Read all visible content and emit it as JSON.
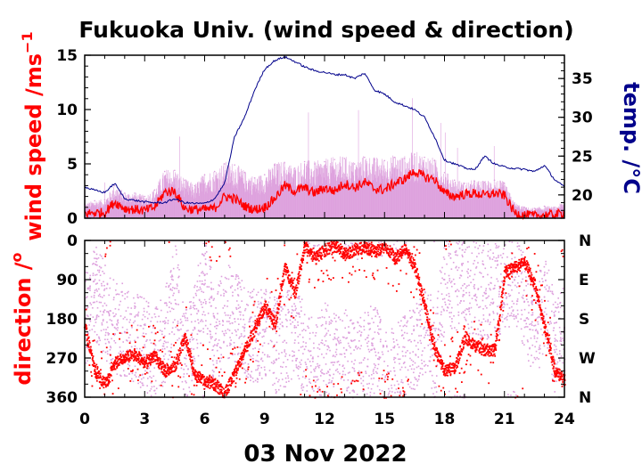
{
  "chart_data": [
    {
      "type": "line",
      "title": "Fukuoka Univ. (wind speed & direction)",
      "ylabel": "wind speed /ms",
      "ylabel_sup": "−1",
      "y2label": "temp. /",
      "y2label_unit": "°C",
      "xlim": [
        0,
        24
      ],
      "ylim": [
        0,
        15
      ],
      "y2lim": [
        17,
        38
      ],
      "x_ticks": [
        "0",
        "3",
        "6",
        "9",
        "12",
        "15",
        "18",
        "21",
        "24"
      ],
      "y_ticks": [
        "0",
        "5",
        "10",
        "15"
      ],
      "y2_ticks": [
        "20",
        "25",
        "30",
        "35"
      ],
      "colors": {
        "mean": "#ff0000",
        "gust": "#dda0dd",
        "temperature": "#00008b"
      },
      "series": [
        {
          "role": "mean",
          "x": [
            0,
            0.5,
            1,
            1.5,
            2,
            2.5,
            3,
            3.5,
            4,
            4.5,
            5,
            5.5,
            6,
            6.5,
            7,
            7.5,
            8,
            8.5,
            9,
            9.5,
            10,
            10.5,
            11,
            11.5,
            12,
            12.5,
            13,
            13.5,
            14,
            14.5,
            15,
            15.5,
            16,
            16.5,
            17,
            17.5,
            18,
            18.5,
            19,
            19.5,
            20,
            20.5,
            21,
            21.5,
            22,
            22.5,
            23,
            23.5,
            24
          ],
          "y": [
            0.4,
            0.5,
            0.5,
            1.5,
            0.9,
            0.8,
            0.7,
            1.0,
            2.4,
            2.5,
            0.9,
            0.8,
            0.8,
            0.9,
            2.0,
            1.8,
            1.1,
            0.8,
            1.0,
            1.8,
            3.0,
            2.5,
            2.8,
            2.3,
            2.8,
            2.5,
            3.2,
            2.8,
            3.3,
            2.7,
            2.6,
            3.2,
            3.6,
            4.3,
            3.8,
            3.6,
            2.3,
            2.0,
            2.2,
            2.3,
            2.1,
            2.3,
            2.1,
            0.5,
            0.3,
            0.2,
            0.3,
            0.3,
            0.5
          ]
        },
        {
          "role": "gust",
          "x": [
            0,
            0.5,
            1,
            1.5,
            2,
            2.5,
            3,
            3.5,
            4,
            4.5,
            5,
            5.5,
            6,
            6.5,
            7,
            7.5,
            8,
            8.5,
            9,
            9.5,
            10,
            10.5,
            11,
            11.5,
            12,
            12.5,
            13,
            13.5,
            14,
            14.5,
            15,
            15.5,
            16,
            16.5,
            17,
            17.5,
            18,
            18.5,
            19,
            19.5,
            20,
            20.5,
            21,
            21.5,
            22,
            22.5,
            23,
            23.5,
            24
          ],
          "y": [
            1.3,
            1.6,
            1.7,
            3.0,
            2.3,
            2.3,
            2.0,
            2.6,
            4.3,
            4.4,
            3.5,
            3.0,
            4.0,
            4.3,
            5.0,
            4.9,
            4.2,
            3.7,
            4.0,
            4.9,
            5.1,
            4.6,
            5.2,
            5.0,
            5.2,
            5.4,
            5.5,
            5.0,
            5.6,
            5.4,
            5.3,
            5.6,
            5.5,
            5.9,
            5.6,
            5.3,
            4.2,
            3.5,
            3.2,
            3.4,
            3.3,
            3.5,
            3.2,
            1.4,
            1.0,
            0.9,
            1.1,
            1.0,
            1.5
          ]
        },
        {
          "role": "temperature",
          "x": [
            0,
            0.5,
            1,
            1.5,
            2,
            2.5,
            3,
            3.5,
            4,
            4.5,
            5,
            5.5,
            6,
            6.5,
            7,
            7.5,
            8,
            8.5,
            9,
            9.5,
            10,
            10.5,
            11,
            11.5,
            12,
            12.5,
            13,
            13.5,
            14,
            14.5,
            15,
            15.5,
            16,
            16.5,
            17,
            17.5,
            18,
            18.5,
            19,
            19.5,
            20,
            20.5,
            21,
            21.5,
            22,
            22.5,
            23,
            23.5,
            24
          ],
          "y": [
            21.0,
            20.6,
            20.3,
            21.5,
            19.5,
            19.3,
            19.1,
            19.0,
            19.0,
            19.5,
            19.0,
            18.9,
            18.9,
            19.5,
            21.5,
            27.5,
            30.0,
            33.5,
            36.2,
            37.3,
            37.8,
            37.2,
            36.5,
            36.0,
            35.8,
            35.5,
            35.5,
            35.0,
            35.7,
            33.5,
            33.0,
            32.0,
            31.5,
            31.0,
            30.0,
            27.5,
            24.5,
            24.0,
            23.5,
            23.2,
            25.0,
            24.0,
            23.6,
            23.4,
            23.3,
            23.0,
            23.8,
            22.0,
            21.0
          ]
        }
      ]
    },
    {
      "type": "scatter",
      "ylabel": "direction /",
      "ylabel_unit": "o",
      "xlim": [
        0,
        24
      ],
      "ylim": [
        0,
        360
      ],
      "y_reversed": true,
      "xlabel": "03 Nov 2022",
      "x_ticks": [
        "0",
        "3",
        "6",
        "9",
        "12",
        "15",
        "18",
        "21",
        "24"
      ],
      "y_ticks": [
        "0",
        "90",
        "180",
        "270",
        "360"
      ],
      "y2_ticks": [
        "N",
        "E",
        "S",
        "W",
        "N"
      ],
      "colors": {
        "mean": "#ff0000",
        "gust": "#dda0dd"
      },
      "series": [
        {
          "role": "mean",
          "x": [
            0,
            0.5,
            1,
            1.5,
            2,
            2.5,
            3,
            3.5,
            4,
            4.5,
            5,
            5.5,
            6,
            6.5,
            7,
            7.5,
            8,
            8.5,
            9,
            9.5,
            10,
            10.5,
            11,
            11.5,
            12,
            12.5,
            13,
            13.5,
            14,
            14.5,
            15,
            15.5,
            16,
            16.5,
            17,
            17.5,
            18,
            18.5,
            19,
            19.5,
            20,
            20.5,
            21,
            21.5,
            22,
            22.5,
            23,
            23.5,
            24
          ],
          "y": [
            200,
            300,
            330,
            280,
            265,
            260,
            280,
            265,
            300,
            285,
            220,
            310,
            320,
            330,
            350,
            300,
            250,
            200,
            150,
            190,
            60,
            120,
            10,
            40,
            20,
            10,
            30,
            20,
            15,
            25,
            10,
            40,
            20,
            60,
            150,
            250,
            300,
            290,
            220,
            240,
            250,
            250,
            70,
            60,
            50,
            100,
            200,
            300,
            320
          ]
        },
        {
          "role": "gust",
          "x": [
            0,
            0.5,
            1,
            1.5,
            2,
            2.5,
            3,
            3.5,
            4,
            4.5,
            5,
            5.5,
            6,
            6.5,
            7,
            7.5,
            8,
            8.5,
            9,
            9.5,
            10,
            10.5,
            11,
            11.5,
            12,
            12.5,
            13,
            13.5,
            14,
            14.5,
            15,
            15.5,
            16,
            16.5,
            17,
            17.5,
            18,
            18.5,
            19,
            19.5,
            20,
            20.5,
            21,
            21.5,
            22,
            22.5,
            23,
            23.5,
            24
          ],
          "y": [
            180,
            120,
            160,
            200,
            210,
            230,
            240,
            250,
            220,
            110,
            270,
            200,
            80,
            240,
            150,
            180,
            200,
            220,
            210,
            240,
            230,
            200,
            250,
            300,
            240,
            280,
            260,
            300,
            270,
            250,
            320,
            300,
            280,
            230,
            200,
            260,
            90,
            100,
            100,
            110,
            120,
            110,
            100,
            90,
            140,
            220,
            130,
            240,
            200
          ]
        }
      ]
    }
  ]
}
